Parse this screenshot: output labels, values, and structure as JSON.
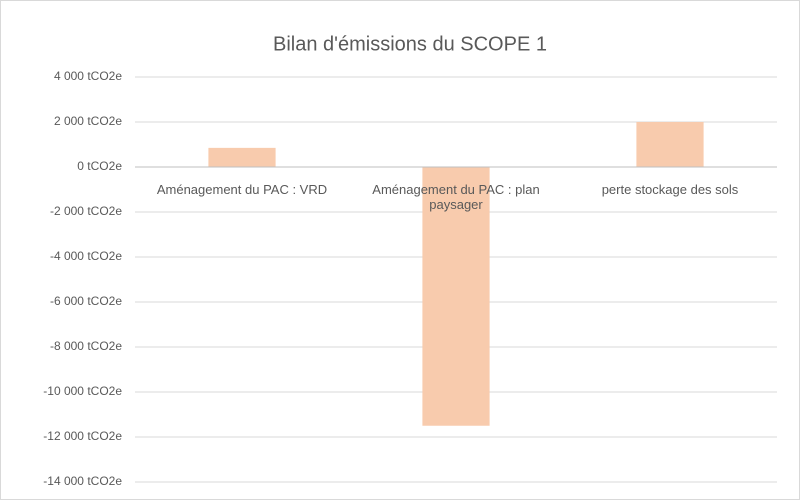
{
  "chart_data": {
    "type": "bar",
    "title": "Bilan d'émissions du SCOPE 1",
    "categories": [
      "Aménagement du PAC : VRD",
      "Aménagement du PAC : plan paysager",
      "perte stockage des sols"
    ],
    "values": [
      850,
      -11500,
      2000
    ],
    "color": "#f8cbad",
    "ylim": [
      -14000,
      4000
    ],
    "yticks": [
      {
        "value": -14000,
        "label": "-14 000 tCO2e"
      },
      {
        "value": -12000,
        "label": "-12 000 tCO2e"
      },
      {
        "value": -10000,
        "label": "-10 000 tCO2e"
      },
      {
        "value": -8000,
        "label": "-8 000 tCO2e"
      },
      {
        "value": -6000,
        "label": "-6 000 tCO2e"
      },
      {
        "value": -4000,
        "label": "-4 000 tCO2e"
      },
      {
        "value": -2000,
        "label": "-2 000 tCO2e"
      },
      {
        "value": 0,
        "label": "0 tCO2e"
      },
      {
        "value": 2000,
        "label": "2 000 tCO2e"
      },
      {
        "value": 4000,
        "label": "4 000 tCO2e"
      }
    ],
    "grid": true
  }
}
